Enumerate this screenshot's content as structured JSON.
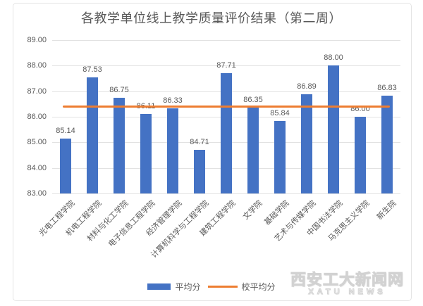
{
  "title": "各教学单位线上教学质量评价结果（第二周）",
  "chart_data": {
    "type": "bar",
    "title": "各教学单位线上教学质量评价结果（第二周）",
    "categories": [
      "光电工程学院",
      "机电工程学院",
      "材料与化工学院",
      "电子信息工程学院",
      "经济管理学院",
      "计算机科学与工程学院",
      "建筑工程学院",
      "文学院",
      "基础学院",
      "艺术与传媒学院",
      "中国书法学院",
      "马克思主义学院",
      "新生院"
    ],
    "series": [
      {
        "name": "平均分",
        "type": "bar",
        "color": "#4472C4",
        "values": [
          85.14,
          87.53,
          86.75,
          86.11,
          86.33,
          84.71,
          87.71,
          86.35,
          85.84,
          86.89,
          88.0,
          86.0,
          86.83
        ]
      },
      {
        "name": "校平均分",
        "type": "line",
        "color": "#ED7D31",
        "value": 86.4
      }
    ],
    "ylim": [
      83,
      89
    ],
    "yticks": [
      "89.00",
      "88.00",
      "87.00",
      "86.00",
      "85.00",
      "84.00",
      "83.00"
    ],
    "grid": true,
    "legend_position": "bottom",
    "data_labels": true
  },
  "legend": {
    "bar_label": "平均分",
    "line_label": "校平均分"
  },
  "watermark": {
    "line1": "西安工大新闻网",
    "line2": "XATU NEWS"
  },
  "colors": {
    "bar": "#4472C4",
    "average_line": "#ED7D31",
    "text": "#595959",
    "grid": "#E2E2E2",
    "frame_border": "#E4E4E4"
  }
}
